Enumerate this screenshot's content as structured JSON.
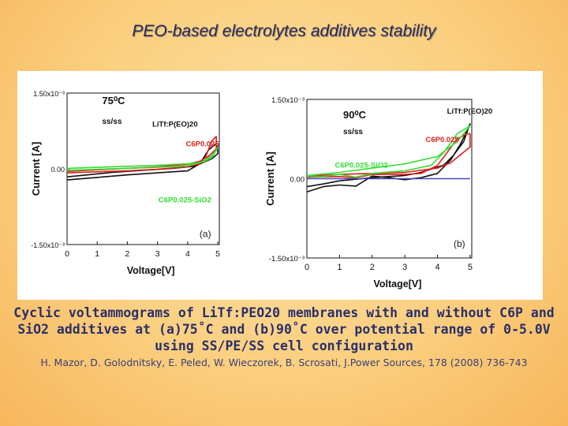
{
  "slide": {
    "title": "PEO-based electrolytes additives stability",
    "caption": "Cyclic voltammograms of LiTf:PEO20 membranes with and without C6P and SiO2 additives at (a)75˚C and (b)90˚C over potential range of 0-5.0V using SS/PE/SS cell configuration",
    "reference": "H. Mazor, D. Golodnitsky, E. Peled, W. Wieczorek, B. Scrosati, J.Power Sources, 178 (2008) 736-743"
  },
  "colors": {
    "black": "#111111",
    "red": "#e0201a",
    "green": "#33dd33",
    "blue": "#4848b8"
  },
  "chart_data": [
    {
      "type": "line",
      "panel_label": "(a)",
      "temperature": "75⁰C",
      "cell": "ss/ss",
      "xlabel": "Voltage[V]",
      "ylabel": "Current [A]",
      "xlim": [
        0,
        5.05
      ],
      "ylim": [
        -0.0015,
        0.0015
      ],
      "xticks": [
        "0",
        "1",
        "2",
        "3",
        "4",
        "5"
      ],
      "yticks": [
        {
          "value": 0.0015,
          "label": "1.50x10⁻³"
        },
        {
          "value": 0,
          "label": "0.00"
        },
        {
          "value": -0.0015,
          "label": "-1.50x10⁻³"
        }
      ],
      "series": [
        {
          "name": "LiTf:P(EO)20",
          "color": "#111111",
          "x": [
            0,
            1,
            2,
            3,
            4,
            4.4,
            4.7,
            4.9,
            5,
            5,
            4.8,
            4.5,
            4.2,
            3.5,
            2.5,
            1.5,
            0.5,
            0
          ],
          "y": [
            -0.00022,
            -0.00017,
            -0.00012,
            -8e-05,
            -4e-05,
            0.0001,
            0.00038,
            0.00048,
            0.00045,
            0.0003,
            0.0002,
            0.00012,
            5e-05,
            1e-05,
            -3e-05,
            -7e-05,
            -0.00013,
            -0.00016
          ]
        },
        {
          "name": "C6P0.025",
          "color": "#e0201a",
          "x": [
            0,
            1,
            2,
            3,
            4,
            4.4,
            4.6,
            4.8,
            4.95,
            4.95,
            4.7,
            4.4,
            4,
            3,
            2,
            1,
            0
          ],
          "y": [
            -8e-05,
            -6e-05,
            -4e-05,
            -1e-05,
            4e-05,
            0.0001,
            0.00024,
            0.00055,
            0.00064,
            0.0004,
            0.00025,
            0.00015,
            9e-05,
            4e-05,
            1e-05,
            -2e-05,
            -5e-05
          ]
        },
        {
          "name": "C6P0.025-SiO2",
          "color": "#33dd33",
          "x": [
            0,
            1,
            2,
            3,
            4,
            4.5,
            4.8,
            5,
            4.8,
            4.5,
            4,
            3,
            2,
            1,
            0
          ],
          "y": [
            -3e-05,
            -1e-05,
            1e-05,
            3e-05,
            6e-05,
            0.00014,
            0.00026,
            0.00042,
            0.00022,
            0.00013,
            0.0001,
            7e-05,
            5e-05,
            3e-05,
            1e-05
          ]
        }
      ],
      "annotations": [
        "LiTf:P(EO)20",
        "C6P0.025",
        "C6P0.025-SiO2"
      ]
    },
    {
      "type": "line",
      "panel_label": "(b)",
      "temperature": "90⁰C",
      "cell": "ss/ss",
      "xlabel": "Voltage[V]",
      "ylabel": "Current [A]",
      "xlim": [
        0,
        5.05
      ],
      "ylim": [
        -0.0015,
        0.0015
      ],
      "xticks": [
        "0",
        "1",
        "2",
        "3",
        "4",
        "5"
      ],
      "yticks": [
        {
          "value": 0.0015,
          "label": "1.50x10⁻³"
        },
        {
          "value": 0,
          "label": "0.00"
        },
        {
          "value": -0.0015,
          "label": "-1.50x10⁻³"
        }
      ],
      "series": [
        {
          "name": "LiTf:P(EO)20",
          "color": "#111111",
          "x": [
            0,
            0.5,
            1,
            1.5,
            2,
            2.5,
            3,
            3.5,
            4,
            4.4,
            4.7,
            4.9,
            5,
            4.8,
            4.5,
            4.2,
            3.5,
            3,
            2.5,
            2,
            1.5,
            1,
            0.5,
            0
          ],
          "y": [
            -0.00025,
            -0.00015,
            -0.00012,
            -0.00014,
            5e-05,
            2e-05,
            -2e-05,
            2e-05,
            0.0001,
            0.00035,
            0.00065,
            0.0009,
            0.00104,
            0.0007,
            0.00045,
            0.00026,
            0.00012,
            6e-05,
            4e-05,
            2e-05,
            -1e-05,
            -4e-05,
            -0.0001,
            -0.00015
          ]
        },
        {
          "name": "C6P0.025",
          "color": "#e0201a",
          "x": [
            0,
            1,
            1.5,
            2,
            3,
            3.5,
            4,
            4.3,
            4.6,
            4.9,
            5,
            5,
            4.7,
            4.4,
            4,
            3,
            2,
            1,
            0
          ],
          "y": [
            3e-05,
            4e-05,
            2e-05,
            8e-05,
            8e-05,
            0.0001,
            0.00025,
            0.0005,
            0.00075,
            0.00085,
            0.00085,
            0.0006,
            0.00045,
            0.0003,
            0.0002,
            0.00012,
            0.0001,
            8e-05,
            5e-05
          ]
        },
        {
          "name": "C6P0.025-SiO2",
          "color": "#33dd33",
          "x": [
            0,
            0.5,
            1,
            1.5,
            2,
            3,
            3.8,
            4.2,
            4.6,
            5,
            4.6,
            4,
            3,
            2,
            1,
            0
          ],
          "y": [
            5e-05,
            4e-05,
            8e-05,
            3e-05,
            0.0001,
            0.00015,
            0.00025,
            0.0005,
            0.00085,
            0.001,
            0.0007,
            0.00042,
            0.00028,
            0.0002,
            0.00012,
            6e-05
          ]
        },
        {
          "name": "0.00 reference",
          "color": "#4848b8",
          "x": [
            0,
            5
          ],
          "y": [
            0,
            0
          ]
        }
      ],
      "annotations": [
        "LiTf:P(EO)20",
        "C6P0.025",
        "C6P0.025-SiO2"
      ]
    }
  ]
}
